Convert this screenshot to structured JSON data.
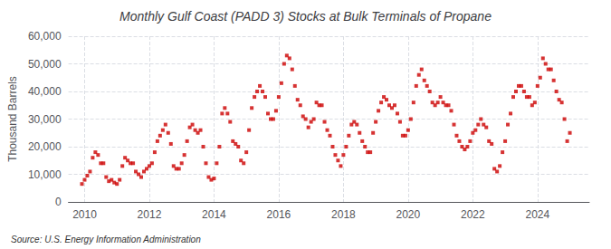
{
  "chart_data": {
    "type": "scatter",
    "title": "Monthly Gulf Coast (PADD 3) Stocks at Bulk Terminals of Propane",
    "ylabel": "Thousand Barrels",
    "annotations": [
      "Source: U.S. Energy Information Administration"
    ],
    "color": "#cc0000",
    "marker": "square",
    "grid": true,
    "xlim": [
      2009.5,
      2025.6
    ],
    "xticks": [
      2010,
      2012,
      2014,
      2016,
      2018,
      2020,
      2022,
      2024
    ],
    "ylim": [
      0,
      60000
    ],
    "yticks": [
      0,
      {
        "value": 10000,
        "label": "10,000"
      },
      {
        "value": 20000,
        "label": "20,000"
      },
      {
        "value": 30000,
        "label": "30,000"
      },
      {
        "value": 40000,
        "label": "40,000"
      },
      {
        "value": 50000,
        "label": "50,000"
      },
      {
        "value": 60000,
        "label": "60,000"
      }
    ],
    "x": [
      2009.917,
      2010.0,
      2010.083,
      2010.167,
      2010.25,
      2010.333,
      2010.417,
      2010.5,
      2010.583,
      2010.667,
      2010.75,
      2010.833,
      2010.917,
      2011.0,
      2011.083,
      2011.167,
      2011.25,
      2011.333,
      2011.417,
      2011.5,
      2011.583,
      2011.667,
      2011.75,
      2011.833,
      2011.917,
      2012.0,
      2012.083,
      2012.167,
      2012.25,
      2012.333,
      2012.417,
      2012.5,
      2012.583,
      2012.667,
      2012.75,
      2012.833,
      2012.917,
      2013.0,
      2013.083,
      2013.167,
      2013.25,
      2013.333,
      2013.417,
      2013.5,
      2013.583,
      2013.667,
      2013.75,
      2013.833,
      2013.917,
      2014.0,
      2014.083,
      2014.167,
      2014.25,
      2014.333,
      2014.417,
      2014.5,
      2014.583,
      2014.667,
      2014.75,
      2014.833,
      2014.917,
      2015.0,
      2015.083,
      2015.167,
      2015.25,
      2015.333,
      2015.417,
      2015.5,
      2015.583,
      2015.667,
      2015.75,
      2015.833,
      2015.917,
      2016.0,
      2016.083,
      2016.167,
      2016.25,
      2016.333,
      2016.417,
      2016.5,
      2016.583,
      2016.667,
      2016.75,
      2016.833,
      2016.917,
      2017.0,
      2017.083,
      2017.167,
      2017.25,
      2017.333,
      2017.417,
      2017.5,
      2017.583,
      2017.667,
      2017.75,
      2017.833,
      2017.917,
      2018.0,
      2018.083,
      2018.167,
      2018.25,
      2018.333,
      2018.417,
      2018.5,
      2018.583,
      2018.667,
      2018.75,
      2018.833,
      2018.917,
      2019.0,
      2019.083,
      2019.167,
      2019.25,
      2019.333,
      2019.417,
      2019.5,
      2019.583,
      2019.667,
      2019.75,
      2019.833,
      2019.917,
      2020.0,
      2020.083,
      2020.167,
      2020.25,
      2020.333,
      2020.417,
      2020.5,
      2020.583,
      2020.667,
      2020.75,
      2020.833,
      2020.917,
      2021.0,
      2021.083,
      2021.167,
      2021.25,
      2021.333,
      2021.417,
      2021.5,
      2021.583,
      2021.667,
      2021.75,
      2021.833,
      2021.917,
      2022.0,
      2022.083,
      2022.167,
      2022.25,
      2022.333,
      2022.417,
      2022.5,
      2022.583,
      2022.667,
      2022.75,
      2022.833,
      2022.917,
      2023.0,
      2023.083,
      2023.167,
      2023.25,
      2023.333,
      2023.417,
      2023.5,
      2023.583,
      2023.667,
      2023.75,
      2023.833,
      2023.917,
      2024.0,
      2024.083,
      2024.167,
      2024.25,
      2024.333,
      2024.417,
      2024.5,
      2024.583,
      2024.667,
      2024.75,
      2024.833,
      2024.917,
      2025.0
    ],
    "values": [
      6500,
      8000,
      9500,
      11000,
      16000,
      18000,
      17000,
      14000,
      14000,
      9000,
      7500,
      8000,
      7000,
      6500,
      8000,
      13000,
      16000,
      15000,
      14000,
      14000,
      11000,
      10000,
      9000,
      11000,
      12000,
      13000,
      14000,
      18000,
      22000,
      24000,
      26000,
      28000,
      25000,
      21000,
      13000,
      12000,
      12000,
      14000,
      17000,
      22000,
      27000,
      28000,
      26000,
      25000,
      26000,
      20000,
      14000,
      9000,
      8000,
      8500,
      14000,
      20000,
      32000,
      34000,
      32000,
      29000,
      22000,
      21000,
      20000,
      15000,
      14000,
      18000,
      26000,
      34000,
      38000,
      40000,
      42000,
      40000,
      38000,
      32000,
      30000,
      30000,
      33000,
      38000,
      43000,
      50000,
      53000,
      52000,
      48000,
      42000,
      37000,
      35000,
      31000,
      30000,
      27000,
      29000,
      30000,
      36000,
      35000,
      35000,
      29000,
      26000,
      24000,
      20000,
      17000,
      15000,
      13000,
      17000,
      20000,
      24000,
      28000,
      29000,
      28000,
      25000,
      22000,
      20000,
      18000,
      18000,
      25000,
      29000,
      33000,
      36000,
      38000,
      37000,
      35000,
      34000,
      35000,
      32000,
      29000,
      24000,
      24000,
      26000,
      30000,
      36000,
      42000,
      46000,
      48000,
      44000,
      42000,
      40000,
      36000,
      35000,
      36000,
      38000,
      36000,
      35000,
      35000,
      33000,
      28000,
      24000,
      22000,
      20000,
      19000,
      20000,
      22000,
      25000,
      26000,
      28000,
      30000,
      28000,
      27000,
      22000,
      21000,
      12000,
      11000,
      13000,
      18000,
      22000,
      28000,
      32000,
      38000,
      40000,
      42000,
      42000,
      40000,
      38000,
      38000,
      35000,
      36000,
      42000,
      45000,
      52000,
      50000,
      48000,
      48000,
      44000,
      40000,
      37000,
      36000,
      30000,
      22000,
      25000
    ]
  }
}
